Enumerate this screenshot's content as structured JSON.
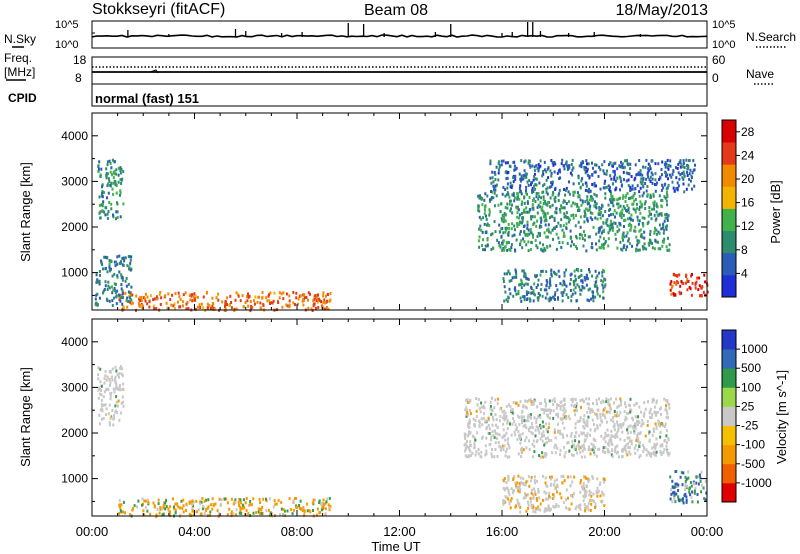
{
  "header": {
    "station": "Stokkseyri (fitACF)",
    "beam": "Beam 08",
    "date": "18/May/2013"
  },
  "side_labels": {
    "nsky": "N.Sky",
    "nsearch": "N.Search",
    "freq": "Freq.",
    "freq_unit": "[MHz]",
    "cpid": "CPID",
    "nave": "Nave"
  },
  "small_ticks": {
    "nsky_top": "10^5",
    "nsky_bottom": "10^0",
    "nsearch_top": "10^5",
    "nsearch_bottom": "10^0",
    "freq_top": "18",
    "freq_bottom": "8",
    "nave_top": "60",
    "nave_bottom": "0"
  },
  "cpid_text": "normal (fast) 151",
  "colors": {
    "power": [
      "#1f2fd8",
      "#2a5cb8",
      "#2e8c6e",
      "#3fb24a",
      "#f2b400",
      "#f28a00",
      "#e43a1a",
      "#d80000"
    ],
    "velocity_scale": [
      "#e00000",
      "#f06000",
      "#f59a00",
      "#f5c000",
      "#c8c8c8",
      "#9ad84a",
      "#2e9a4a",
      "#2e6ab8",
      "#2438c8"
    ],
    "velocity_gray": "#c8c8c8",
    "velocity_orange": "#f59a00",
    "velocity_green": "#3a9a4a",
    "velocity_blue": "#2e5cb8"
  },
  "chart_data": [
    {
      "type": "heatmap",
      "title": "Power",
      "xlabel": "",
      "ylabel": "Slant Range [km]",
      "x_ticks": [
        "00:00",
        "04:00",
        "08:00",
        "12:00",
        "16:00",
        "20:00",
        "00:00"
      ],
      "x_range_hours": [
        0,
        24
      ],
      "y_ticks": [
        "1000",
        "2000",
        "3000",
        "4000"
      ],
      "ylim": [
        180,
        4500
      ],
      "colorbar": {
        "label": "Power [dB]",
        "ticks": [
          "4",
          "8",
          "12",
          "16",
          "20",
          "24",
          "28"
        ],
        "range": [
          0,
          30
        ]
      },
      "echo_regions": [
        {
          "x": [
            0.2,
            1.2
          ],
          "y": [
            2200,
            3500
          ],
          "level": 10
        },
        {
          "x": [
            1.0,
            9.3
          ],
          "y": [
            200,
            600
          ],
          "level": 22
        },
        {
          "x": [
            0.1,
            1.5
          ],
          "y": [
            300,
            1400
          ],
          "level": 8
        },
        {
          "x": [
            15.0,
            22.5
          ],
          "y": [
            1500,
            2800
          ],
          "level": 10
        },
        {
          "x": [
            16.0,
            20.0
          ],
          "y": [
            400,
            1100
          ],
          "level": 8
        },
        {
          "x": [
            22.5,
            24.0
          ],
          "y": [
            500,
            1000
          ],
          "level": 26
        },
        {
          "x": [
            15.5,
            23.5
          ],
          "y": [
            2800,
            3500
          ],
          "level": 6
        }
      ]
    },
    {
      "type": "heatmap",
      "title": "Velocity",
      "xlabel": "Time UT",
      "ylabel": "Slant Range [km]",
      "x_ticks": [
        "00:00",
        "04:00",
        "08:00",
        "12:00",
        "16:00",
        "20:00",
        "00:00"
      ],
      "x_range_hours": [
        0,
        24
      ],
      "y_ticks": [
        "1000",
        "2000",
        "3000",
        "4000"
      ],
      "ylim": [
        180,
        4500
      ],
      "colorbar": {
        "label": "Velocity [m s^-1]",
        "ticks": [
          "-1000",
          "-500",
          "-100",
          "-25",
          "25",
          "100",
          "500",
          "1000"
        ]
      },
      "echo_regions": [
        {
          "x": [
            0.2,
            1.2
          ],
          "y": [
            2200,
            3500
          ],
          "class": "gray"
        },
        {
          "x": [
            1.0,
            9.3
          ],
          "y": [
            200,
            600
          ],
          "class": "orange-green"
        },
        {
          "x": [
            14.5,
            22.5
          ],
          "y": [
            1500,
            2800
          ],
          "class": "gray"
        },
        {
          "x": [
            16.0,
            20.0
          ],
          "y": [
            300,
            1100
          ],
          "class": "gray-orange"
        },
        {
          "x": [
            22.5,
            24.0
          ],
          "y": [
            500,
            1200
          ],
          "class": "blue-green"
        }
      ]
    }
  ]
}
